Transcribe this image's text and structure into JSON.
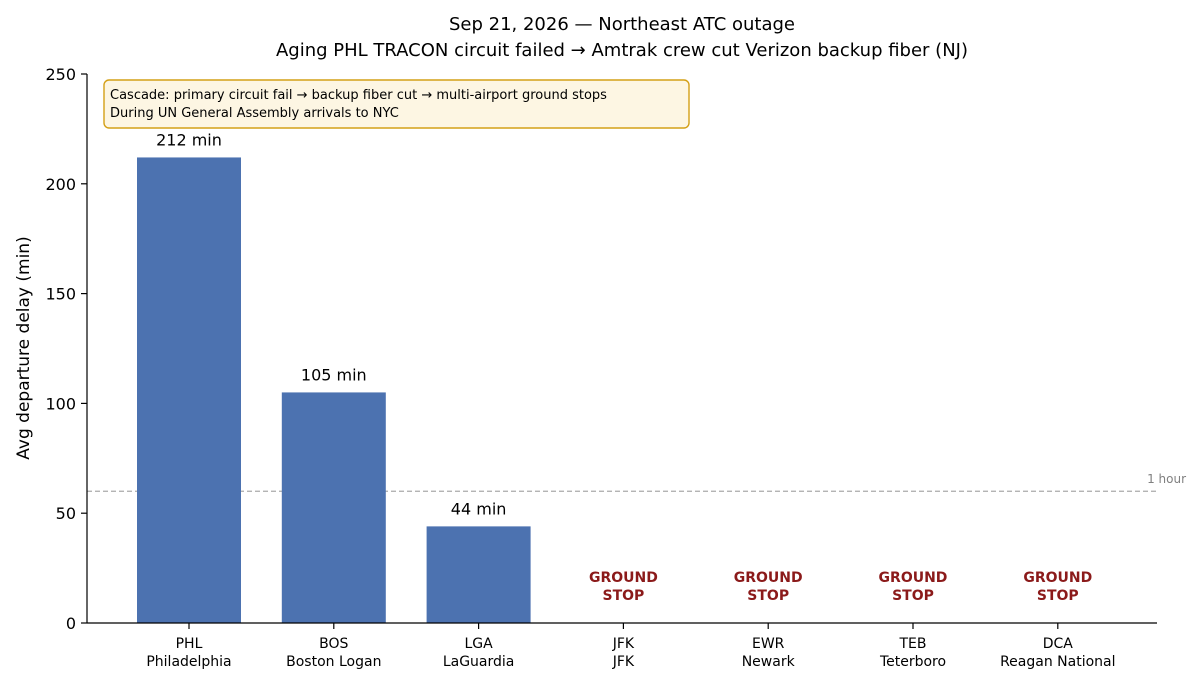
{
  "chart_data": {
    "type": "bar",
    "title": "Sep 21, 2026 — Northeast ATC outage",
    "subtitle": "Aging PHL TRACON circuit failed → Amtrak crew cut Verizon backup fiber (NJ)",
    "xlabel": "",
    "ylabel": "Avg departure delay (min)",
    "ylim": [
      0,
      250
    ],
    "yticks": [
      0,
      50,
      100,
      150,
      200,
      250
    ],
    "categories": [
      {
        "code": "PHL",
        "name": "Philadelphia"
      },
      {
        "code": "BOS",
        "name": "Boston Logan"
      },
      {
        "code": "LGA",
        "name": "LaGuardia"
      },
      {
        "code": "JFK",
        "name": "JFK"
      },
      {
        "code": "EWR",
        "name": "Newark"
      },
      {
        "code": "TEB",
        "name": "Teterboro"
      },
      {
        "code": "DCA",
        "name": "Reagan National"
      }
    ],
    "values": [
      212,
      105,
      44,
      null,
      null,
      null,
      null
    ],
    "value_labels": [
      "212 min",
      "105 min",
      "44 min",
      "",
      "",
      "",
      ""
    ],
    "ground_stop_label": [
      "GROUND",
      "STOP"
    ],
    "reference_line": {
      "value": 60,
      "label": "1 hour"
    },
    "annotation": [
      "Cascade: primary circuit fail → backup fiber cut → multi-airport ground stops",
      "During UN General Assembly arrivals to NYC"
    ],
    "grid": false,
    "legend": "none",
    "colors": {
      "bar": "#4c72b0",
      "ground_stop": "#8b1a1a",
      "reference": "#aaaaaa",
      "reference_label": "#808080",
      "note_fill": "#fdf6e3",
      "note_border": "#d4a017"
    }
  }
}
